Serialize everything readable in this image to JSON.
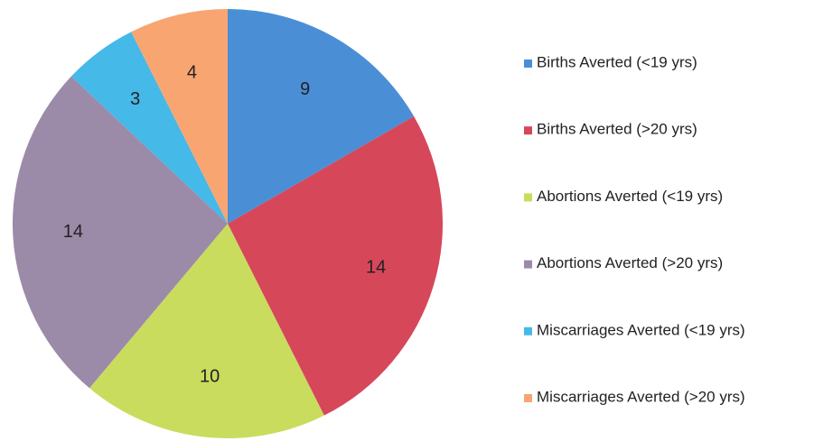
{
  "chart_data": {
    "type": "pie",
    "categories": [
      "Births Averted (<19 yrs)",
      "Births Averted (>20 yrs)",
      "Abortions Averted (<19 yrs)",
      "Abortions Averted (>20 yrs)",
      "Miscarriages Averted (<19 yrs)",
      "Miscarriages Averted (>20 yrs)"
    ],
    "values": [
      9,
      14,
      10,
      14,
      3,
      4
    ],
    "colors": [
      "#4a8fd6",
      "#d6475a",
      "#c9dc5e",
      "#9c8aa9",
      "#45b9e8",
      "#f8a571"
    ],
    "legend": "right"
  }
}
